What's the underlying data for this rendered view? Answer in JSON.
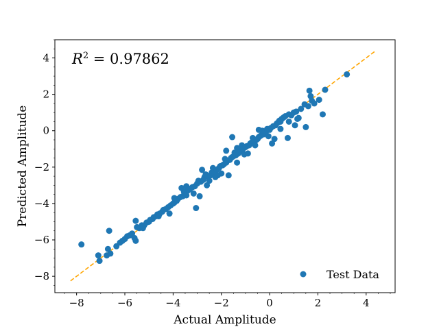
{
  "chart_data": {
    "type": "scatter",
    "xlabel": "Actual Amplitude",
    "ylabel": "Predicted Amplitude",
    "xlim": [
      -8.9,
      5.2
    ],
    "ylim": [
      -8.9,
      5.0
    ],
    "xticks": [
      -8,
      -6,
      -4,
      -2,
      0,
      2,
      4
    ],
    "yticks": [
      -8,
      -6,
      -4,
      -2,
      0,
      2,
      4
    ],
    "xtick_labels": [
      "−8",
      "−6",
      "−4",
      "−2",
      "0",
      "2",
      "4"
    ],
    "ytick_labels": [
      "−8",
      "−6",
      "−4",
      "−2",
      "0",
      "2",
      "4"
    ],
    "annotation": {
      "prefix": "R",
      "sup": "2",
      "value": " = 0.97862"
    },
    "legend": {
      "label": "Test Data",
      "placement": "lower-right"
    },
    "fit_line": {
      "x": [
        -8.25,
        4.35
      ],
      "y": [
        -8.25,
        4.35
      ],
      "color": "#ffa500",
      "style": "dashed"
    },
    "series": [
      {
        "name": "Test Data",
        "color": "#1f77b4",
        "points": [
          [
            -7.8,
            -6.25
          ],
          [
            -7.1,
            -6.85
          ],
          [
            -7.05,
            -7.15
          ],
          [
            -6.75,
            -6.85
          ],
          [
            -6.7,
            -6.5
          ],
          [
            -6.65,
            -5.5
          ],
          [
            -6.6,
            -6.75
          ],
          [
            -6.35,
            -6.35
          ],
          [
            -6.2,
            -6.15
          ],
          [
            -6.1,
            -6.05
          ],
          [
            -6.0,
            -5.95
          ],
          [
            -5.9,
            -5.8
          ],
          [
            -5.8,
            -5.75
          ],
          [
            -5.7,
            -5.65
          ],
          [
            -5.6,
            -5.9
          ],
          [
            -5.55,
            -6.05
          ],
          [
            -5.55,
            -4.95
          ],
          [
            -5.5,
            -5.3
          ],
          [
            -5.4,
            -5.35
          ],
          [
            -5.3,
            -5.2
          ],
          [
            -5.2,
            -5.2
          ],
          [
            -5.1,
            -5.05
          ],
          [
            -5.0,
            -5.0
          ],
          [
            -4.95,
            -4.9
          ],
          [
            -4.85,
            -4.85
          ],
          [
            -4.8,
            -4.75
          ],
          [
            -4.7,
            -4.7
          ],
          [
            -4.65,
            -4.6
          ],
          [
            -4.55,
            -4.55
          ],
          [
            -4.45,
            -4.45
          ],
          [
            -4.4,
            -4.35
          ],
          [
            -4.3,
            -4.3
          ],
          [
            -4.2,
            -4.2
          ],
          [
            -4.15,
            -4.55
          ],
          [
            -4.1,
            -4.1
          ],
          [
            -4.0,
            -4.0
          ],
          [
            -3.95,
            -3.95
          ],
          [
            -3.85,
            -3.85
          ],
          [
            -3.8,
            -3.75
          ],
          [
            -3.7,
            -3.65
          ],
          [
            -3.65,
            -3.15
          ],
          [
            -3.6,
            -3.6
          ],
          [
            -3.55,
            -3.35
          ],
          [
            -3.5,
            -3.45
          ],
          [
            -3.45,
            -3.05
          ],
          [
            -3.4,
            -3.3
          ],
          [
            -3.35,
            -3.25
          ],
          [
            -3.3,
            -3.2
          ],
          [
            -3.2,
            -3.1
          ],
          [
            -3.15,
            -3.45
          ],
          [
            -3.1,
            -3.05
          ],
          [
            -3.05,
            -4.25
          ],
          [
            -3.0,
            -2.9
          ],
          [
            -2.95,
            -2.75
          ],
          [
            -2.9,
            -3.6
          ],
          [
            -2.85,
            -2.8
          ],
          [
            -2.75,
            -2.7
          ],
          [
            -2.7,
            -2.55
          ],
          [
            -2.65,
            -2.4
          ],
          [
            -2.6,
            -3.0
          ],
          [
            -2.55,
            -2.5
          ],
          [
            -2.5,
            -2.75
          ],
          [
            -2.45,
            -2.45
          ],
          [
            -2.4,
            -2.3
          ],
          [
            -2.35,
            -2.05
          ],
          [
            -2.3,
            -2.25
          ],
          [
            -2.25,
            -2.55
          ],
          [
            -2.2,
            -2.15
          ],
          [
            -2.1,
            -2.05
          ],
          [
            -2.05,
            -1.95
          ],
          [
            -2.0,
            -2.35
          ],
          [
            -1.95,
            -1.9
          ],
          [
            -1.9,
            -1.85
          ],
          [
            -1.85,
            -1.55
          ],
          [
            -1.8,
            -1.75
          ],
          [
            -1.75,
            -1.65
          ],
          [
            -1.7,
            -2.45
          ],
          [
            -1.65,
            -1.6
          ],
          [
            -1.6,
            -1.5
          ],
          [
            -1.55,
            -1.45
          ],
          [
            -1.5,
            -1.4
          ],
          [
            -1.45,
            -1.2
          ],
          [
            -1.4,
            -1.35
          ],
          [
            -1.35,
            -0.95
          ],
          [
            -1.3,
            -1.25
          ],
          [
            -1.25,
            -1.15
          ],
          [
            -1.2,
            -1.1
          ],
          [
            -1.15,
            -0.8
          ],
          [
            -1.1,
            -1.0
          ],
          [
            -1.05,
            -1.3
          ],
          [
            -1.0,
            -0.9
          ],
          [
            -0.95,
            -0.85
          ],
          [
            -0.9,
            -1.25
          ],
          [
            -0.85,
            -0.8
          ],
          [
            -0.8,
            -0.7
          ],
          [
            -0.75,
            -0.65
          ],
          [
            -0.7,
            -0.4
          ],
          [
            -0.65,
            -0.6
          ],
          [
            -0.6,
            -0.55
          ],
          [
            -0.55,
            -0.5
          ],
          [
            -0.5,
            -0.45
          ],
          [
            -0.45,
            -0.35
          ],
          [
            -0.4,
            -0.3
          ],
          [
            -0.35,
            -0.25
          ],
          [
            -0.3,
            0.0
          ],
          [
            -0.25,
            -0.2
          ],
          [
            -0.2,
            -0.1
          ],
          [
            -0.15,
            -0.05
          ],
          [
            -0.1,
            0.1
          ],
          [
            -0.05,
            -0.3
          ],
          [
            0.0,
            0.05
          ],
          [
            0.05,
            0.15
          ],
          [
            0.1,
            -0.7
          ],
          [
            0.15,
            0.25
          ],
          [
            0.2,
            -0.45
          ],
          [
            0.25,
            0.3
          ],
          [
            0.3,
            0.4
          ],
          [
            0.35,
            0.45
          ],
          [
            0.4,
            0.55
          ],
          [
            0.45,
            0.5
          ],
          [
            0.5,
            0.65
          ],
          [
            0.55,
            0.7
          ],
          [
            0.6,
            0.75
          ],
          [
            0.65,
            0.8
          ],
          [
            0.75,
            -0.4
          ],
          [
            0.8,
            0.9
          ],
          [
            0.9,
            0.85
          ],
          [
            1.0,
            1.0
          ],
          [
            1.05,
            0.3
          ],
          [
            1.1,
            1.05
          ],
          [
            1.2,
            0.7
          ],
          [
            1.3,
            1.2
          ],
          [
            1.45,
            1.45
          ],
          [
            1.5,
            0.2
          ],
          [
            1.6,
            1.35
          ],
          [
            1.65,
            2.2
          ],
          [
            1.7,
            1.9
          ],
          [
            1.75,
            1.65
          ],
          [
            1.85,
            1.5
          ],
          [
            2.05,
            1.7
          ],
          [
            2.2,
            0.9
          ],
          [
            2.3,
            2.25
          ],
          [
            3.2,
            3.1
          ],
          [
            -3.45,
            -3.55
          ],
          [
            -2.15,
            -2.45
          ],
          [
            -1.35,
            -1.75
          ],
          [
            -1.55,
            -0.35
          ],
          [
            -0.6,
            -0.8
          ],
          [
            0.45,
            0.1
          ],
          [
            1.15,
            0.65
          ],
          [
            -4.6,
            -4.7
          ],
          [
            -5.25,
            -5.35
          ],
          [
            -3.95,
            -3.7
          ],
          [
            -2.8,
            -2.15
          ],
          [
            0.8,
            0.5
          ],
          [
            -1.8,
            -1.1
          ],
          [
            -0.45,
            0.05
          ]
        ]
      }
    ]
  }
}
